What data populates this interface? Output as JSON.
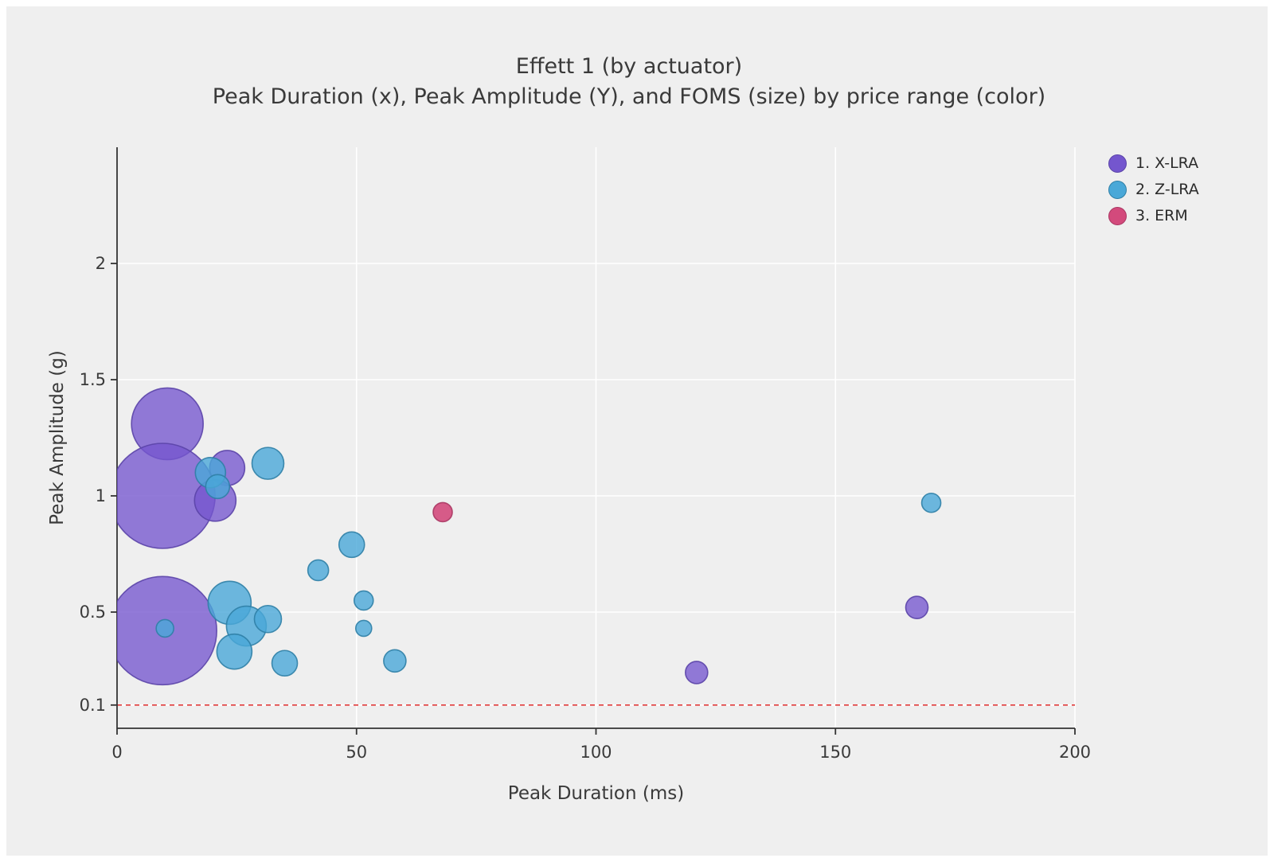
{
  "chart_data": {
    "type": "scatter",
    "subtype": "bubble",
    "title": "Effett 1 (by actuator)",
    "subtitle": "Peak Duration (x), Peak Amplitude (Y), and FOMS (size) by price range (color)",
    "xlabel": "Peak Duration (ms)",
    "ylabel": "Peak Amplitude (g)",
    "xlim": [
      0,
      200
    ],
    "ylim": [
      0,
      2.5
    ],
    "x_ticks": [
      "0",
      "50",
      "100",
      "150",
      "200"
    ],
    "x_tick_values": [
      0,
      50,
      100,
      150,
      200
    ],
    "y_ticks": [
      "0.1",
      "0.5",
      "1",
      "1.5",
      "2"
    ],
    "y_tick_values": [
      0.1,
      0.5,
      1,
      1.5,
      2
    ],
    "grid": true,
    "legend_position": "top-right",
    "background_color": "#efefef",
    "grid_color": "#ffffff",
    "axis_color": "#333333",
    "text_color": "#3a3a3a",
    "threshold_line": {
      "y": 0.1,
      "color": "#e23b3b",
      "style": "dashed"
    },
    "size_encoding": "FOMS",
    "color_encoding": "price range",
    "series": [
      {
        "name": "1. X-LRA",
        "color": "#7456ce",
        "stroke": "#5b44a8",
        "fill_opacity": 0.78,
        "points": [
          {
            "x": 10.5,
            "y": 1.31,
            "r": 45
          },
          {
            "x": 9.5,
            "y": 1.0,
            "r": 66
          },
          {
            "x": 23,
            "y": 1.12,
            "r": 22
          },
          {
            "x": 20.5,
            "y": 0.98,
            "r": 26
          },
          {
            "x": 9.5,
            "y": 0.42,
            "r": 68
          },
          {
            "x": 121,
            "y": 0.24,
            "r": 14
          },
          {
            "x": 167,
            "y": 0.52,
            "r": 14
          }
        ]
      },
      {
        "name": "2. Z-LRA",
        "color": "#4aa8d8",
        "stroke": "#2f7fa6",
        "fill_opacity": 0.8,
        "points": [
          {
            "x": 19.5,
            "y": 1.1,
            "r": 19
          },
          {
            "x": 21,
            "y": 1.04,
            "r": 15
          },
          {
            "x": 31.5,
            "y": 1.14,
            "r": 20
          },
          {
            "x": 49,
            "y": 0.79,
            "r": 16
          },
          {
            "x": 42,
            "y": 0.68,
            "r": 13
          },
          {
            "x": 23.5,
            "y": 0.54,
            "r": 27
          },
          {
            "x": 27,
            "y": 0.44,
            "r": 25
          },
          {
            "x": 31.5,
            "y": 0.47,
            "r": 17
          },
          {
            "x": 24.5,
            "y": 0.33,
            "r": 22
          },
          {
            "x": 35,
            "y": 0.28,
            "r": 16
          },
          {
            "x": 10,
            "y": 0.43,
            "r": 11
          },
          {
            "x": 51.5,
            "y": 0.55,
            "r": 12
          },
          {
            "x": 51.5,
            "y": 0.43,
            "r": 10
          },
          {
            "x": 58,
            "y": 0.29,
            "r": 14
          },
          {
            "x": 170,
            "y": 0.97,
            "r": 12
          }
        ]
      },
      {
        "name": "3. ERM",
        "color": "#d34a7c",
        "stroke": "#aa3763",
        "fill_opacity": 0.9,
        "points": [
          {
            "x": 68,
            "y": 0.93,
            "r": 12
          }
        ]
      }
    ]
  }
}
